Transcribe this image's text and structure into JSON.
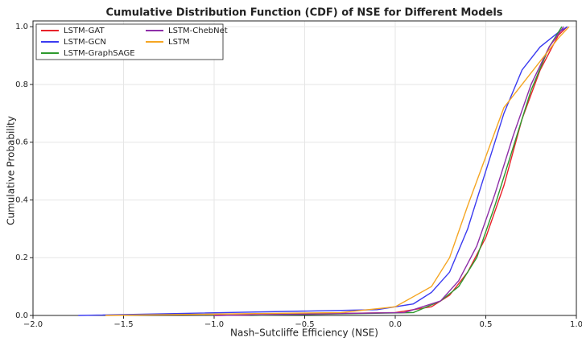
{
  "chart_data": {
    "type": "line",
    "title": "Cumulative Distribution Function (CDF) of NSE for Different Models",
    "x_label": "Nash–Sutcliffe Efficiency (NSE)",
    "y_label": "Cumulative Probability",
    "xlim": [
      -2.0,
      1.0
    ],
    "ylim": [
      0.0,
      1.02
    ],
    "xticks": [
      {
        "value": -2.0,
        "label": "−2.0"
      },
      {
        "value": -1.5,
        "label": "−1.5"
      },
      {
        "value": -1.0,
        "label": "−1.0"
      },
      {
        "value": -0.5,
        "label": "−0.5"
      },
      {
        "value": 0.0,
        "label": "0.0"
      },
      0.5,
      {
        "value": 1.0,
        "label": "1.0"
      }
    ],
    "yticks": [
      {
        "value": 0.0,
        "label": "0.0"
      },
      0.2,
      0.4,
      0.6,
      0.8,
      {
        "value": 1.0,
        "label": "1.0"
      }
    ],
    "grid": true,
    "legend": "upper-left",
    "series": [
      {
        "name": "LSTM-GAT",
        "color": "#e8222a",
        "x": [
          -1.0,
          0.0,
          0.2,
          0.3,
          0.4,
          0.5,
          0.6,
          0.7,
          0.8,
          0.9,
          0.95
        ],
        "values": [
          0,
          0.01,
          0.03,
          0.07,
          0.15,
          0.27,
          0.45,
          0.68,
          0.85,
          0.97,
          1.0
        ]
      },
      {
        "name": "LSTM-GCN",
        "color": "#3b3bf0",
        "x": [
          -1.75,
          -0.1,
          0.1,
          0.2,
          0.3,
          0.4,
          0.5,
          0.6,
          0.7,
          0.8,
          0.9,
          0.95
        ],
        "values": [
          0,
          0.02,
          0.04,
          0.08,
          0.15,
          0.3,
          0.5,
          0.7,
          0.85,
          0.93,
          0.98,
          1.0
        ]
      },
      {
        "name": "LSTM-GraphSAGE",
        "color": "#2e9a2e",
        "x": [
          -0.8,
          0.1,
          0.25,
          0.35,
          0.45,
          0.55,
          0.65,
          0.75,
          0.85,
          0.92
        ],
        "values": [
          0,
          0.01,
          0.05,
          0.1,
          0.2,
          0.38,
          0.58,
          0.78,
          0.93,
          1.0
        ]
      },
      {
        "name": "LSTM-ChebNet",
        "color": "#8e2fa8",
        "x": [
          -1.0,
          0.05,
          0.25,
          0.35,
          0.45,
          0.55,
          0.65,
          0.75,
          0.85,
          0.93
        ],
        "values": [
          0,
          0.01,
          0.05,
          0.12,
          0.24,
          0.42,
          0.62,
          0.8,
          0.93,
          1.0
        ]
      },
      {
        "name": "LSTM",
        "color": "#f5a623",
        "x": [
          -1.6,
          -0.3,
          0.0,
          0.2,
          0.3,
          0.4,
          0.5,
          0.6,
          0.7,
          0.8,
          0.9,
          0.96
        ],
        "values": [
          0,
          0.01,
          0.03,
          0.1,
          0.2,
          0.38,
          0.55,
          0.72,
          0.8,
          0.88,
          0.96,
          1.0
        ]
      }
    ]
  }
}
